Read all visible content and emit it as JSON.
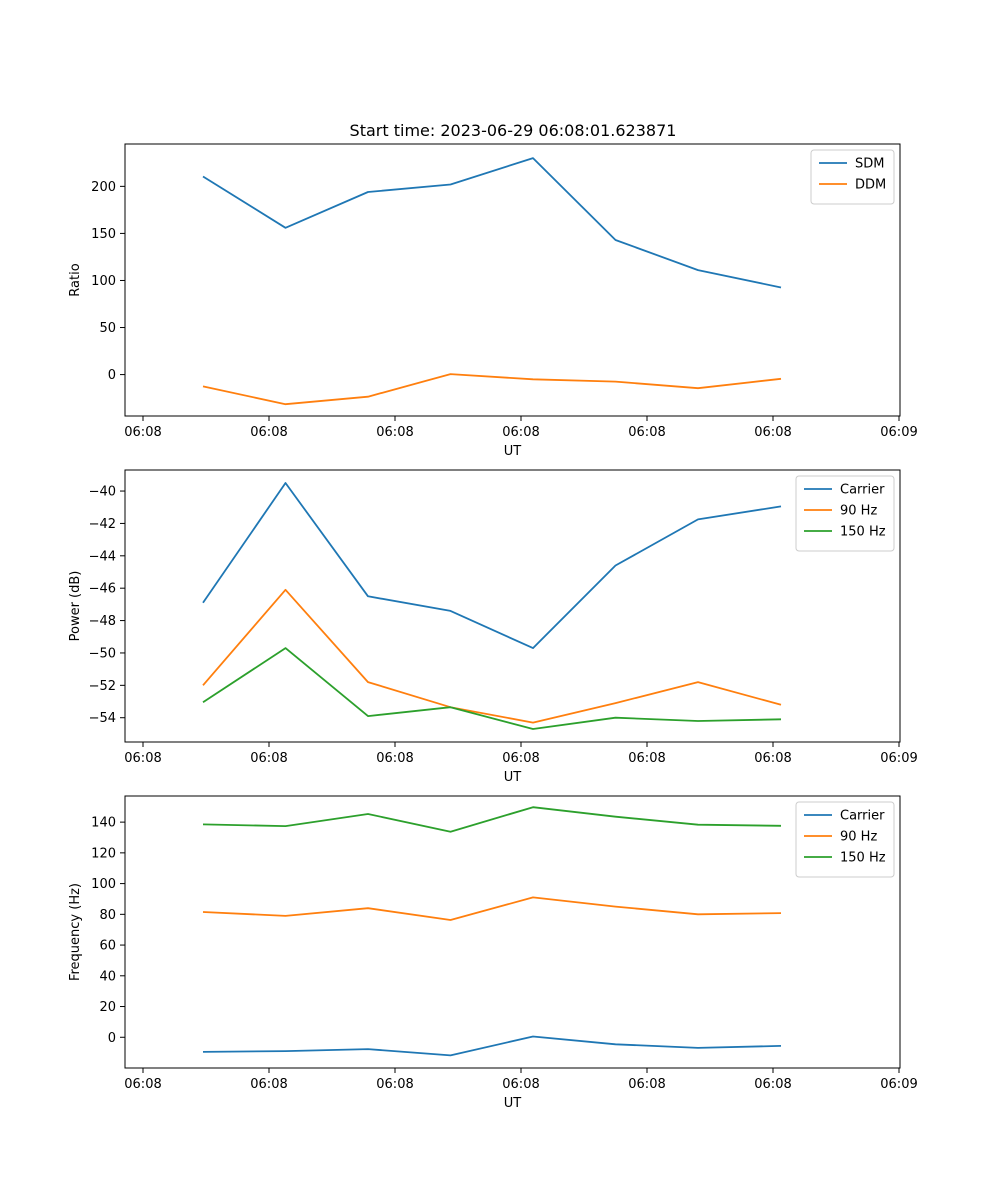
{
  "figure_title": "Start time: 2023-06-29 06:08:01.623871",
  "chart_data": [
    {
      "type": "line",
      "xlabel": "UT",
      "ylabel": "Ratio",
      "x_tick_labels": [
        "06:08",
        "06:08",
        "06:08",
        "06:08",
        "06:08",
        "06:08",
        "06:09"
      ],
      "yticks": [
        0,
        50,
        100,
        150,
        200
      ],
      "ylim": [
        -44,
        245
      ],
      "grid": false,
      "legend_position": "top-right",
      "series": [
        {
          "name": "SDM",
          "values": [
            210.5,
            156.0,
            194.0,
            202.0,
            230.0,
            143.0,
            111.0,
            92.5
          ]
        },
        {
          "name": "DDM",
          "values": [
            -12.5,
            -31.5,
            -23.5,
            0.5,
            -5.0,
            -7.5,
            -14.5,
            -4.5
          ]
        }
      ]
    },
    {
      "type": "line",
      "xlabel": "UT",
      "ylabel": "Power (dB)",
      "x_tick_labels": [
        "06:08",
        "06:08",
        "06:08",
        "06:08",
        "06:08",
        "06:08",
        "06:09"
      ],
      "yticks": [
        -54,
        -52,
        -50,
        -48,
        -46,
        -44,
        -42,
        -40
      ],
      "ylim": [
        -55.5,
        -38.7
      ],
      "grid": false,
      "legend_position": "top-right",
      "series": [
        {
          "name": "Carrier",
          "values": [
            -46.9,
            -39.5,
            -46.5,
            -47.4,
            -49.7,
            -44.6,
            -41.75,
            -40.95
          ]
        },
        {
          "name": "90 Hz",
          "values": [
            -52.0,
            -46.1,
            -51.8,
            -53.35,
            -54.3,
            -53.1,
            -51.8,
            -53.2
          ]
        },
        {
          "name": "150 Hz",
          "values": [
            -53.05,
            -49.7,
            -53.9,
            -53.35,
            -54.7,
            -54.0,
            -54.2,
            -54.1
          ]
        }
      ]
    },
    {
      "type": "line",
      "xlabel": "UT",
      "ylabel": "Frequency (Hz)",
      "x_tick_labels": [
        "06:08",
        "06:08",
        "06:08",
        "06:08",
        "06:08",
        "06:08",
        "06:09"
      ],
      "yticks": [
        0,
        20,
        40,
        60,
        80,
        100,
        120,
        140
      ],
      "ylim": [
        -20.0,
        157.0
      ],
      "grid": false,
      "legend_position": "top-right",
      "series": [
        {
          "name": "Carrier",
          "values": [
            -9.5,
            -9.0,
            -7.7,
            -11.8,
            0.5,
            -4.6,
            -6.9,
            -5.6
          ]
        },
        {
          "name": "90 Hz",
          "values": [
            81.5,
            79.0,
            84.0,
            76.3,
            91.0,
            85.0,
            80.0,
            80.8
          ]
        },
        {
          "name": "150 Hz",
          "values": [
            138.5,
            137.4,
            145.3,
            133.8,
            149.7,
            143.5,
            138.3,
            137.6
          ]
        }
      ]
    }
  ],
  "colors": {
    "series": [
      "#1f77b4",
      "#ff7f0e",
      "#2ca02c"
    ]
  }
}
